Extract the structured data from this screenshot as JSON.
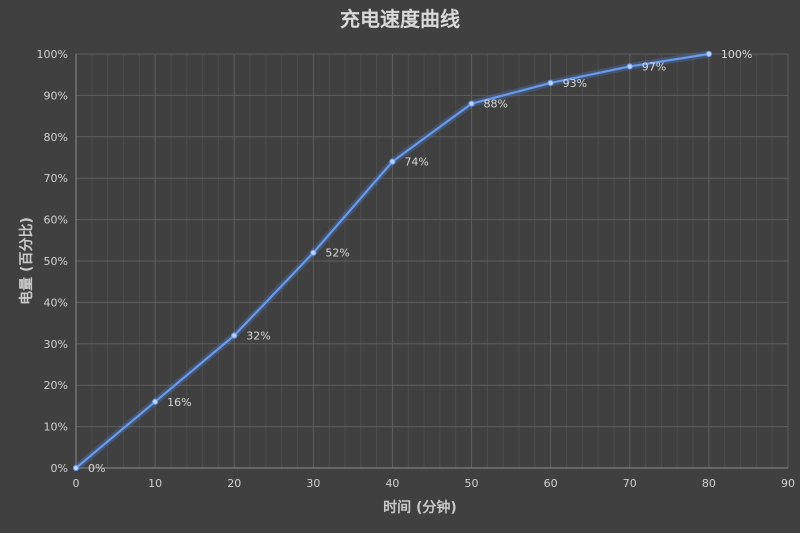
{
  "chart_data": {
    "type": "line",
    "title": "充电速度曲线",
    "xlabel": "时间 (分钟)",
    "ylabel": "电量 (百分比)",
    "x": [
      0,
      10,
      20,
      30,
      40,
      50,
      60,
      70,
      80
    ],
    "series": [
      {
        "values": [
          0,
          16,
          32,
          52,
          74,
          88,
          93,
          97,
          100
        ],
        "data_labels": [
          "0%",
          "16%",
          "32%",
          "52%",
          "74%",
          "88%",
          "93%",
          "97%",
          "100%"
        ]
      }
    ],
    "xlim": [
      0,
      90
    ],
    "ylim": [
      0,
      100
    ],
    "x_ticks": [
      0,
      10,
      20,
      30,
      40,
      50,
      60,
      70,
      80,
      90
    ],
    "y_ticks": [
      0,
      10,
      20,
      30,
      40,
      50,
      60,
      70,
      80,
      90,
      100
    ],
    "y_tick_labels": [
      "0%",
      "10%",
      "20%",
      "30%",
      "40%",
      "50%",
      "60%",
      "70%",
      "80%",
      "90%",
      "100%"
    ],
    "grid": true,
    "line_color": "#6a9ae8",
    "background_color": "#404040"
  }
}
